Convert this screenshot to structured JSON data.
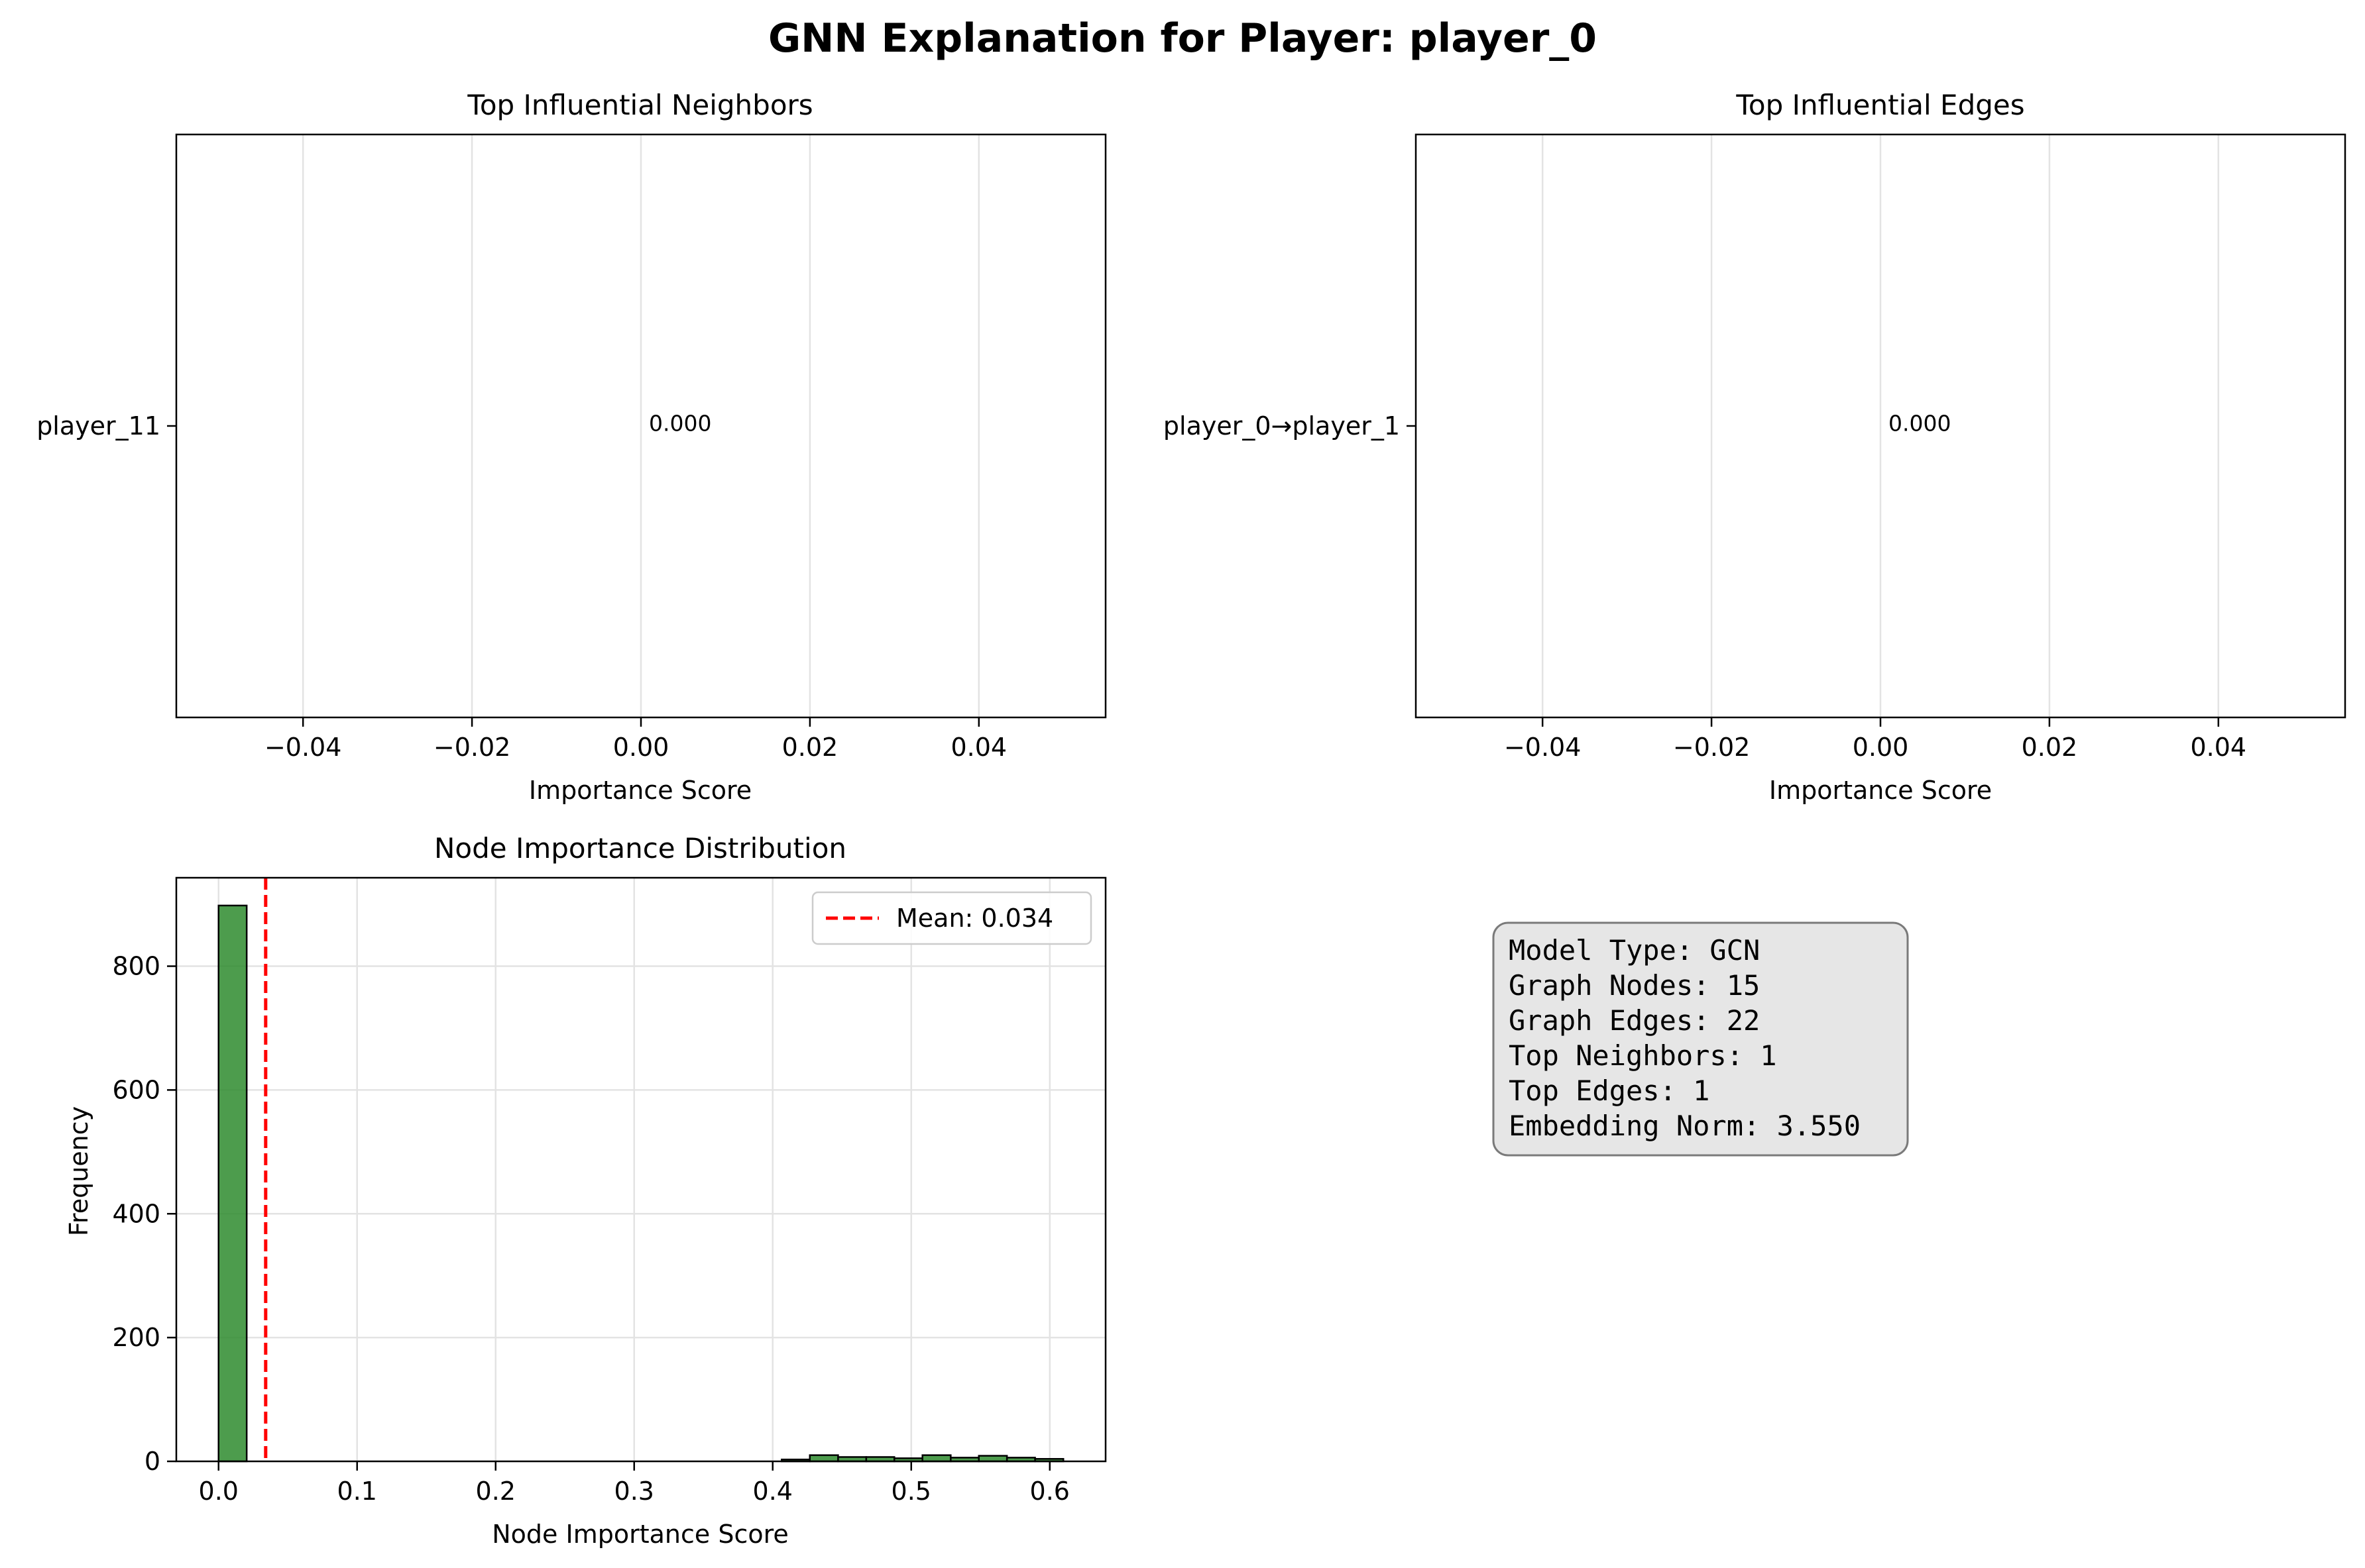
{
  "figure": {
    "title": "GNN Explanation for Player: player_0"
  },
  "chart_data": [
    {
      "type": "bar",
      "orientation": "horizontal",
      "title": "Top Influential Neighbors",
      "xlabel": "Importance Score",
      "ylabel": "",
      "categories": [
        "player_11"
      ],
      "values": [
        0.0
      ],
      "value_labels": [
        "0.000"
      ],
      "xlim": [
        -0.055,
        0.055
      ],
      "xticks": [
        -0.04,
        -0.02,
        0.0,
        0.02,
        0.04
      ],
      "xtick_labels": [
        "−0.04",
        "−0.02",
        "0.00",
        "0.02",
        "0.04"
      ],
      "grid": "x"
    },
    {
      "type": "bar",
      "orientation": "horizontal",
      "title": "Top Influential Edges",
      "xlabel": "Importance Score",
      "ylabel": "",
      "categories": [
        "player_0→player_1"
      ],
      "values": [
        0.0
      ],
      "value_labels": [
        "0.000"
      ],
      "xlim": [
        -0.055,
        0.055
      ],
      "xticks": [
        -0.04,
        -0.02,
        0.0,
        0.02,
        0.04
      ],
      "xtick_labels": [
        "−0.04",
        "−0.02",
        "0.00",
        "0.02",
        "0.04"
      ],
      "grid": "x"
    },
    {
      "type": "histogram",
      "title": "Node Importance Distribution",
      "xlabel": "Node Importance Score",
      "ylabel": "Frequency",
      "bar_color": "#2e8b2e",
      "bins": [
        {
          "x0": 0.0,
          "x1": 0.0203,
          "count": 898
        },
        {
          "x0": 0.4065,
          "x1": 0.4268,
          "count": 3
        },
        {
          "x0": 0.4268,
          "x1": 0.4472,
          "count": 10
        },
        {
          "x0": 0.4472,
          "x1": 0.4675,
          "count": 7
        },
        {
          "x0": 0.4675,
          "x1": 0.4878,
          "count": 7
        },
        {
          "x0": 0.4878,
          "x1": 0.5081,
          "count": 5
        },
        {
          "x0": 0.5081,
          "x1": 0.5285,
          "count": 10
        },
        {
          "x0": 0.5285,
          "x1": 0.5488,
          "count": 6
        },
        {
          "x0": 0.5488,
          "x1": 0.5691,
          "count": 9
        },
        {
          "x0": 0.5691,
          "x1": 0.5894,
          "count": 6
        },
        {
          "x0": 0.5894,
          "x1": 0.6098,
          "count": 4
        }
      ],
      "mean_line": {
        "value": 0.034,
        "label": "Mean: 0.034",
        "color": "#ff0000",
        "style": "dashed"
      },
      "xlim": [
        -0.0305,
        0.6403
      ],
      "ylim": [
        0,
        942.9
      ],
      "xticks": [
        0.0,
        0.1,
        0.2,
        0.3,
        0.4,
        0.5,
        0.6
      ],
      "xtick_labels": [
        "0.0",
        "0.1",
        "0.2",
        "0.3",
        "0.4",
        "0.5",
        "0.6"
      ],
      "yticks": [
        0,
        200,
        400,
        600,
        800
      ],
      "ytick_labels": [
        "0",
        "200",
        "400",
        "600",
        "800"
      ],
      "grid": "both",
      "legend_position": "upper right"
    }
  ],
  "info_box": {
    "lines": [
      "Model Type: GCN",
      "Graph Nodes: 15",
      "Graph Edges: 22",
      "Top Neighbors: 1",
      "Top Edges: 1",
      "Embedding Norm: 3.550"
    ]
  }
}
